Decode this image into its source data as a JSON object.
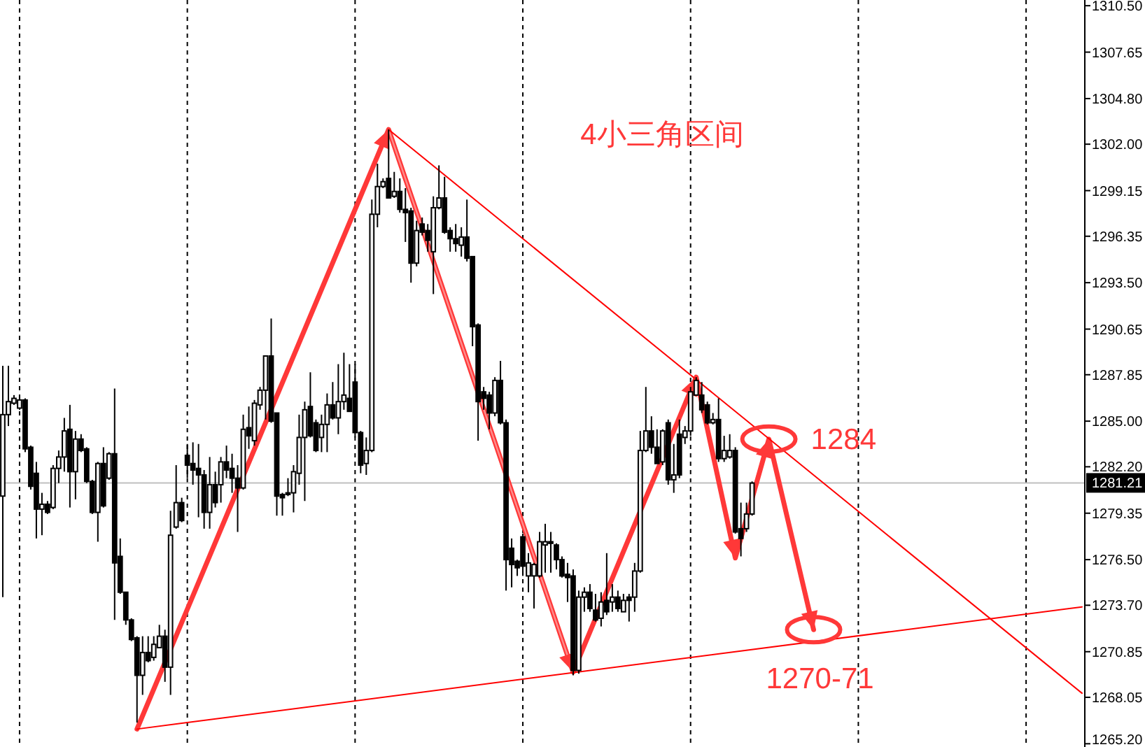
{
  "chart_data": {
    "type": "candlestick",
    "title": "4小三角区间",
    "categories": [
      null,
      null,
      null,
      null,
      null,
      null,
      null,
      null,
      null,
      null,
      null,
      null,
      null,
      null,
      null,
      null,
      null,
      null,
      null,
      null,
      null,
      null,
      null,
      null,
      null,
      null,
      null,
      null,
      null,
      null,
      null,
      null,
      null,
      null,
      null,
      null,
      null,
      null,
      null,
      null,
      null,
      null,
      null,
      null,
      null,
      null,
      null,
      null,
      null,
      null,
      null,
      null,
      null,
      null,
      null,
      null,
      null,
      null,
      null,
      null,
      null,
      null,
      null,
      null,
      null,
      null,
      null,
      null,
      null,
      null,
      null,
      null,
      null,
      null,
      null,
      null,
      null,
      null,
      null,
      null,
      null,
      null,
      null,
      null,
      null,
      null,
      null,
      null,
      null,
      null,
      null,
      null,
      null,
      null,
      null,
      null,
      null,
      null,
      null,
      null,
      null,
      null,
      null,
      null,
      null,
      null,
      null,
      null,
      null,
      null,
      null,
      null,
      null,
      null,
      null,
      null,
      null,
      null,
      null,
      null,
      null,
      null,
      null,
      null,
      null,
      null,
      null,
      null,
      null,
      null,
      null,
      null,
      null,
      null,
      null,
      null,
      null,
      null,
      null,
      null,
      null,
      null,
      null,
      null,
      null,
      null,
      null,
      null,
      null,
      null,
      null,
      null,
      null,
      null,
      null,
      null,
      null,
      null,
      null,
      null,
      null,
      null,
      null,
      null,
      null,
      null,
      null,
      null,
      null,
      null,
      null,
      null,
      null,
      null,
      null,
      null,
      null,
      null,
      null,
      null,
      null,
      null,
      null,
      null,
      null,
      null,
      null,
      null,
      null,
      null,
      null,
      null,
      null,
      null
    ],
    "ohlc": [
      [
        1280.4,
        1288.4,
        1274.2,
        1285.4
      ],
      [
        1285.4,
        1288.4,
        1284.7,
        1286.2
      ],
      [
        1286.1,
        1286.6,
        1286.0,
        1286.4
      ],
      [
        1285.8,
        1286.6,
        1285.7,
        1286.3
      ],
      [
        1286.3,
        1286.4,
        1283.1,
        1283.3
      ],
      [
        1283.4,
        1283.5,
        1280.8,
        1281.0
      ],
      [
        1281.8,
        1282.5,
        1277.8,
        1279.6
      ],
      [
        1279.6,
        1280.6,
        1278.0,
        1279.9
      ],
      [
        1279.9,
        1280.1,
        1279.3,
        1279.4
      ],
      [
        1279.7,
        1282.3,
        1279.6,
        1282.1
      ],
      [
        1282.1,
        1283.2,
        1281.2,
        1282.8
      ],
      [
        1282.8,
        1285.2,
        1281.9,
        1284.4
      ],
      [
        1284.5,
        1286.0,
        1279.7,
        1281.9
      ],
      [
        1281.9,
        1284.4,
        1280.2,
        1283.9
      ],
      [
        1283.9,
        1284.2,
        1283.1,
        1283.2
      ],
      [
        1283.3,
        1283.4,
        1281.2,
        1281.3
      ],
      [
        1281.3,
        1281.4,
        1279.3,
        1279.4
      ],
      [
        1279.4,
        1282.5,
        1277.6,
        1282.4
      ],
      [
        1282.4,
        1283.4,
        1279.7,
        1279.8
      ],
      [
        1281.5,
        1283.1,
        1281.4,
        1283.0
      ],
      [
        1283.0,
        1287.0,
        1272.8,
        1276.3
      ],
      [
        1276.7,
        1277.8,
        1274.4,
        1274.5
      ],
      [
        1274.5,
        1274.5,
        1272.5,
        1272.8
      ],
      [
        1272.8,
        1272.9,
        1271.5,
        1271.6
      ],
      [
        1271.7,
        1271.8,
        1266.5,
        1269.4
      ],
      [
        1269.4,
        1271.8,
        1268.2,
        1270.8
      ],
      [
        1270.8,
        1271.8,
        1270.2,
        1270.3
      ],
      [
        1270.5,
        1271.8,
        1270.3,
        1271.3
      ],
      [
        1271.1,
        1272.5,
        1271.1,
        1271.8
      ],
      [
        1271.8,
        1272.2,
        1269.0,
        1269.9
      ],
      [
        1269.9,
        1279.5,
        1268.2,
        1278.0
      ],
      [
        1278.5,
        1282.3,
        1278.4,
        1280.0
      ],
      [
        1280.0,
        1280.3,
        1278.8,
        1278.9
      ],
      [
        1282.9,
        1283.6,
        1281.5,
        1282.3
      ],
      [
        1282.4,
        1283.7,
        1281.1,
        1282.0
      ],
      [
        1282.1,
        1283.6,
        1279.1,
        1281.7
      ],
      [
        1281.7,
        1282.0,
        1278.4,
        1279.4
      ],
      [
        1279.4,
        1282.8,
        1278.4,
        1281.1
      ],
      [
        1281.1,
        1281.9,
        1279.7,
        1280.0
      ],
      [
        1281.1,
        1282.8,
        1280.0,
        1282.5
      ],
      [
        1282.5,
        1283.5,
        1281.5,
        1282.0
      ],
      [
        1282.1,
        1283.0,
        1280.6,
        1281.5
      ],
      [
        1281.5,
        1282.3,
        1278.2,
        1280.9
      ],
      [
        1280.9,
        1285.4,
        1280.8,
        1284.5
      ],
      [
        1284.6,
        1285.9,
        1283.3,
        1284.1
      ],
      [
        1283.8,
        1286.3,
        1283.5,
        1286.1
      ],
      [
        1286.0,
        1287.1,
        1285.7,
        1286.9
      ],
      [
        1286.9,
        1289.0,
        1285.1,
        1289.0
      ],
      [
        1289.0,
        1291.3,
        1284.9,
        1285.0
      ],
      [
        1285.5,
        1285.5,
        1279.2,
        1280.4
      ],
      [
        1280.5,
        1280.6,
        1279.2,
        1280.3
      ],
      [
        1280.6,
        1281.5,
        1280.4,
        1280.5
      ],
      [
        1280.6,
        1282.3,
        1279.4,
        1281.9
      ],
      [
        1281.8,
        1285.4,
        1281.1,
        1284.0
      ],
      [
        1284.0,
        1286.2,
        1280.1,
        1285.7
      ],
      [
        1285.9,
        1288.0,
        1284.0,
        1284.1
      ],
      [
        1284.9,
        1285.1,
        1283.1,
        1283.2
      ],
      [
        1284.0,
        1285.4,
        1283.1,
        1284.8
      ],
      [
        1284.8,
        1286.7,
        1283.1,
        1286.0
      ],
      [
        1286.0,
        1287.4,
        1285.1,
        1285.2
      ],
      [
        1285.2,
        1288.5,
        1284.2,
        1286.2
      ],
      [
        1286.2,
        1289.2,
        1285.7,
        1286.6
      ],
      [
        1286.4,
        1288.5,
        1285.6,
        1285.6
      ],
      [
        1287.4,
        1288.5,
        1284.0,
        1284.3
      ],
      [
        1284.3,
        1284.4,
        1281.8,
        1282.3
      ],
      [
        1282.4,
        1284.0,
        1281.7,
        1283.2
      ],
      [
        1283.2,
        1298.6,
        1283.1,
        1297.7
      ],
      [
        1297.7,
        1300.8,
        1296.9,
        1299.4
      ],
      [
        1299.4,
        1299.9,
        1299.3,
        1299.7
      ],
      [
        1299.9,
        1302.9,
        1298.7,
        1298.7
      ],
      [
        1298.8,
        1300.3,
        1298.7,
        1299.1
      ],
      [
        1299.1,
        1299.9,
        1297.8,
        1298.0
      ],
      [
        1298.0,
        1299.3,
        1296.0,
        1297.8
      ],
      [
        1297.9,
        1298.1,
        1293.5,
        1294.7
      ],
      [
        1294.7,
        1297.3,
        1294.5,
        1296.7
      ],
      [
        1297.1,
        1297.5,
        1296.4,
        1296.6
      ],
      [
        1296.7,
        1297.1,
        1295.4,
        1296.1
      ],
      [
        1295.4,
        1298.8,
        1292.8,
        1298.1
      ],
      [
        1298.1,
        1300.7,
        1298.0,
        1298.7
      ],
      [
        1298.7,
        1300.0,
        1296.5,
        1296.6
      ],
      [
        1296.7,
        1296.9,
        1295.4,
        1296.2
      ],
      [
        1296.2,
        1297.1,
        1295.4,
        1295.9
      ],
      [
        1295.8,
        1296.9,
        1295.1,
        1296.3
      ],
      [
        1296.3,
        1298.6,
        1294.8,
        1295.0
      ],
      [
        1295.1,
        1295.1,
        1289.6,
        1290.8
      ],
      [
        1290.9,
        1291.0,
        1283.8,
        1286.2
      ],
      [
        1286.8,
        1287.1,
        1285.7,
        1286.4
      ],
      [
        1286.6,
        1286.8,
        1284.5,
        1285.5
      ],
      [
        1285.5,
        1287.7,
        1285.3,
        1287.5
      ],
      [
        1287.5,
        1288.7,
        1284.8,
        1284.9
      ],
      [
        1284.9,
        1285.1,
        1274.6,
        1276.5
      ],
      [
        1277.2,
        1277.8,
        1274.8,
        1276.2
      ],
      [
        1276.4,
        1276.5,
        1275.5,
        1276.0
      ],
      [
        1277.9,
        1278.1,
        1275.5,
        1276.1
      ],
      [
        1275.5,
        1276.9,
        1274.5,
        1276.3
      ],
      [
        1275.5,
        1276.3,
        1273.5,
        1276.2
      ],
      [
        1275.5,
        1278.2,
        1275.4,
        1277.6
      ],
      [
        1277.4,
        1278.7,
        1275.7,
        1277.6
      ],
      [
        1277.6,
        1278.2,
        1275.7,
        1277.5
      ],
      [
        1277.4,
        1277.5,
        1275.9,
        1276.5
      ],
      [
        1276.5,
        1276.7,
        1275.4,
        1275.5
      ],
      [
        1275.6,
        1276.3,
        1273.9,
        1275.4
      ],
      [
        1275.5,
        1275.9,
        1269.4,
        1269.7
      ],
      [
        1269.7,
        1274.6,
        1269.5,
        1274.2
      ],
      [
        1274.2,
        1274.8,
        1273.3,
        1274.5
      ],
      [
        1274.5,
        1275.0,
        1273.3,
        1273.5
      ],
      [
        1273.4,
        1274.4,
        1272.7,
        1272.8
      ],
      [
        1272.9,
        1274.5,
        1272.4,
        1273.9
      ],
      [
        1274.0,
        1276.9,
        1273.1,
        1273.3
      ],
      [
        1273.9,
        1275.0,
        1273.3,
        1274.2
      ],
      [
        1274.2,
        1274.6,
        1273.3,
        1273.5
      ],
      [
        1273.3,
        1274.4,
        1273.3,
        1274.0
      ],
      [
        1274.2,
        1274.4,
        1272.7,
        1274.0
      ],
      [
        1274.2,
        1276.3,
        1273.3,
        1275.8
      ],
      [
        1275.8,
        1284.4,
        1275.7,
        1283.2
      ],
      [
        1283.2,
        1287.1,
        1283.1,
        1284.4
      ],
      [
        1284.4,
        1285.3,
        1283.0,
        1283.4
      ],
      [
        1283.4,
        1284.5,
        1282.4,
        1282.4
      ],
      [
        1282.5,
        1284.5,
        1282.3,
        1284.4
      ],
      [
        1284.9,
        1285.1,
        1281.1,
        1281.4
      ],
      [
        1281.4,
        1283.6,
        1280.6,
        1281.7
      ],
      [
        1284.2,
        1285.1,
        1281.5,
        1281.7
      ],
      [
        1284.0,
        1284.7,
        1283.6,
        1284.4
      ],
      [
        1284.4,
        1287.1,
        1284.1,
        1286.8
      ],
      [
        1286.6,
        1287.7,
        1286.6,
        1287.5
      ],
      [
        1286.6,
        1287.4,
        1285.5,
        1285.7
      ],
      [
        1286.0,
        1286.2,
        1284.8,
        1284.9
      ],
      [
        1284.9,
        1285.5,
        1284.8,
        1285.1
      ],
      [
        1285.1,
        1286.4,
        1282.5,
        1282.7
      ],
      [
        1282.7,
        1284.1,
        1282.5,
        1283.2
      ],
      [
        1282.8,
        1284.2,
        1282.7,
        1283.2
      ],
      [
        1283.2,
        1283.4,
        1278.1,
        1278.2
      ],
      [
        1278.4,
        1280.0,
        1276.7,
        1277.8
      ],
      [
        1278.4,
        1280.0,
        1278.2,
        1279.3
      ],
      [
        1279.3,
        1281.3,
        1279.2,
        1281.2
      ],
      null,
      null,
      null,
      null,
      null,
      null,
      null,
      null,
      null,
      null,
      null,
      null,
      null,
      null,
      null,
      null,
      null,
      null,
      null,
      null,
      null,
      null,
      null,
      null,
      null,
      null,
      null,
      null,
      null,
      null,
      null,
      null,
      null,
      null,
      null,
      null,
      null,
      null,
      null,
      null,
      null,
      null,
      null,
      null,
      null,
      null,
      null,
      null,
      null,
      null,
      null,
      null,
      null,
      null,
      null,
      null,
      null,
      null,
      null
    ],
    "series": [
      {
        "type": "line",
        "color": "#ff0000",
        "values": [
          null,
          null,
          null,
          null,
          null,
          null,
          null,
          null,
          null,
          null,
          null,
          null,
          null,
          null,
          null,
          null,
          null,
          null,
          null,
          null,
          null,
          null,
          null,
          null,
          null,
          null,
          null,
          null,
          null,
          null,
          null,
          null,
          null,
          null,
          null,
          null,
          null,
          null,
          null,
          null,
          null,
          null,
          null,
          null,
          null,
          null,
          null,
          null,
          null,
          null,
          null,
          null,
          null,
          null,
          null,
          null,
          null,
          null,
          null,
          null,
          null,
          null,
          null,
          null,
          null,
          null,
          null,
          null,
          null,
          1302.9,
          null,
          null,
          null,
          null,
          null,
          null,
          null,
          null,
          null,
          null,
          null,
          null,
          null,
          null,
          null,
          null,
          null,
          null,
          null,
          null,
          null,
          null,
          null,
          null,
          null,
          null,
          null,
          null,
          null,
          null,
          null,
          null,
          null,
          null,
          null,
          null,
          null,
          null,
          null,
          null,
          null,
          null,
          null,
          null,
          null,
          null,
          null,
          null,
          null,
          null,
          null,
          null,
          null,
          null,
          null,
          null,
          null,
          null,
          null,
          null,
          null,
          null,
          null,
          null,
          null,
          null,
          null,
          null,
          null,
          null,
          null,
          null,
          null,
          null,
          null,
          null,
          null,
          null,
          null,
          null,
          null,
          null,
          null,
          null,
          null,
          null,
          null,
          null,
          null,
          null,
          null,
          null,
          null,
          null,
          null,
          null,
          null,
          null,
          null,
          null,
          null,
          null,
          null,
          null,
          null,
          null,
          null,
          null,
          null,
          null,
          null,
          null,
          null,
          null,
          null,
          null,
          null,
          null,
          null,
          null,
          null,
          null,
          null,
          1268.3
        ]
      },
      {
        "type": "line",
        "color": "#ff0000",
        "values": [
          null,
          null,
          null,
          null,
          null,
          null,
          null,
          null,
          null,
          null,
          null,
          null,
          null,
          null,
          null,
          null,
          null,
          null,
          null,
          null,
          null,
          null,
          null,
          null,
          1266.1,
          null,
          null,
          null,
          null,
          null,
          null,
          null,
          null,
          null,
          null,
          null,
          null,
          null,
          null,
          null,
          null,
          null,
          null,
          null,
          null,
          null,
          null,
          null,
          null,
          null,
          null,
          null,
          null,
          null,
          null,
          null,
          null,
          null,
          null,
          null,
          null,
          null,
          null,
          null,
          null,
          null,
          null,
          null,
          null,
          null,
          null,
          null,
          null,
          null,
          null,
          null,
          null,
          null,
          null,
          null,
          null,
          null,
          null,
          null,
          null,
          null,
          null,
          null,
          null,
          null,
          null,
          null,
          null,
          null,
          null,
          null,
          null,
          null,
          null,
          null,
          null,
          null,
          null,
          null,
          null,
          null,
          null,
          null,
          null,
          null,
          null,
          null,
          null,
          null,
          null,
          null,
          null,
          null,
          null,
          null,
          null,
          null,
          null,
          null,
          null,
          null,
          null,
          null,
          null,
          null,
          null,
          null,
          null,
          null,
          null,
          null,
          null,
          null,
          null,
          null,
          null,
          null,
          null,
          null,
          null,
          null,
          null,
          null,
          null,
          null,
          null,
          null,
          null,
          null,
          null,
          null,
          null,
          null,
          null,
          null,
          null,
          null,
          null,
          null,
          null,
          null,
          null,
          null,
          null,
          null,
          null,
          null,
          null,
          null,
          null,
          null,
          null,
          null,
          null,
          null,
          null,
          null,
          null,
          null,
          null,
          null,
          null,
          null,
          null,
          null,
          null,
          null,
          null,
          1273.6
        ]
      },
      {
        "type": "line",
        "color": "#ff8c8c",
        "values": [
          null,
          null,
          null,
          null,
          null,
          null,
          null,
          null,
          null,
          null,
          null,
          null,
          null,
          null,
          null,
          null,
          null,
          null,
          null,
          null,
          null,
          null,
          null,
          null,
          null,
          null,
          null,
          null,
          null,
          null,
          null,
          null,
          null,
          null,
          null,
          null,
          null,
          null,
          null,
          null,
          null,
          null,
          null,
          null,
          null,
          null,
          null,
          null,
          null,
          null,
          null,
          null,
          null,
          null,
          null,
          null,
          null,
          null,
          null,
          null,
          null,
          null,
          null,
          null,
          null,
          null,
          null,
          null,
          null,
          1302.9,
          null,
          null,
          null,
          null,
          null,
          null,
          null,
          null,
          null,
          null,
          null,
          null,
          null,
          null,
          null,
          null,
          null,
          null,
          null,
          null,
          null,
          null,
          null,
          null,
          null,
          null,
          null,
          null,
          null,
          null,
          null,
          null,
          1269.6,
          null,
          null,
          null,
          null,
          null,
          null,
          null,
          null,
          null,
          null,
          null,
          null,
          null,
          null,
          null,
          null,
          null,
          null,
          null,
          null,
          null,
          null,
          null,
          null,
          null,
          null,
          null,
          null,
          null,
          null,
          null,
          null,
          null,
          null,
          null,
          null,
          null,
          null,
          null,
          null,
          null,
          null,
          null,
          null,
          null,
          null,
          null,
          null,
          null,
          null,
          null,
          null,
          null,
          null,
          null,
          null,
          null,
          null,
          null,
          null,
          null,
          null,
          null,
          null,
          null,
          null,
          null,
          null,
          null,
          null,
          null,
          null,
          null,
          null,
          null,
          null,
          null,
          null,
          null,
          null,
          null,
          null,
          null,
          null,
          null,
          null,
          null,
          null,
          null,
          null,
          null
        ]
      },
      {
        "type": "line",
        "color": "#ff3838",
        "values": [
          null,
          null,
          null,
          null,
          null,
          null,
          null,
          null,
          null,
          null,
          null,
          null,
          null,
          null,
          null,
          null,
          null,
          null,
          null,
          null,
          null,
          null,
          null,
          null,
          1266.1,
          null,
          null,
          null,
          null,
          null,
          null,
          null,
          null,
          null,
          null,
          null,
          null,
          null,
          null,
          null,
          null,
          null,
          null,
          null,
          null,
          null,
          null,
          null,
          null,
          null,
          null,
          null,
          null,
          null,
          null,
          null,
          null,
          null,
          null,
          null,
          null,
          null,
          null,
          null,
          null,
          null,
          null,
          null,
          null,
          1302.9,
          null,
          null,
          null,
          null,
          null,
          null,
          null,
          null,
          null,
          null,
          null,
          null,
          null,
          null,
          null,
          null,
          null,
          null,
          null,
          null,
          null,
          null,
          null,
          null,
          null,
          null,
          null,
          null,
          null,
          null,
          null,
          null,
          1269.6,
          null,
          null,
          null,
          null,
          null,
          null,
          null,
          null,
          null,
          null,
          null,
          null,
          null,
          null,
          null,
          null,
          null,
          null,
          null,
          null,
          null,
          1287.7,
          null,
          null,
          null,
          null,
          null,
          null,
          1276.6,
          null,
          null,
          null,
          null,
          null,
          1283.9,
          null,
          null,
          null,
          null,
          null,
          null,
          null,
          1272.2,
          null,
          null,
          null,
          null,
          null,
          null,
          null,
          null,
          null,
          null,
          null,
          null,
          null,
          null,
          null,
          null,
          null,
          null,
          null,
          null,
          null,
          null,
          null,
          null,
          null,
          null,
          null,
          null,
          null,
          null,
          null,
          null,
          null,
          null,
          null,
          null,
          null,
          null,
          null,
          null,
          null,
          null,
          null,
          null,
          null,
          null,
          null,
          null
        ]
      }
    ],
    "annotations": [
      "1284",
      "1270-71"
    ],
    "ref_lines": [
      {
        "axis": "y",
        "value": 1281.21,
        "label": "1281.21",
        "color": "#c0c0c0"
      }
    ],
    "ylim": [
      1265.0,
      1310.85
    ],
    "yticks": [
      {
        "value": 1310.5,
        "label": "1310.50"
      },
      1307.65,
      {
        "value": 1304.8,
        "label": "1304.80"
      },
      {
        "value": 1302,
        "label": "1302.00"
      },
      1299.15,
      1296.35,
      {
        "value": 1293.5,
        "label": "1293.50"
      },
      1290.65,
      1287.85,
      {
        "value": 1285,
        "label": "1285.00"
      },
      {
        "value": 1282.2,
        "label": "1282.20"
      },
      1279.35,
      {
        "value": 1276.5,
        "label": "1276.50"
      },
      {
        "value": 1273.7,
        "label": "1273.70"
      },
      1270.85,
      1268.05,
      {
        "value": 1265.2,
        "label": "1265.20"
      }
    ],
    "grid": "x",
    "tick_labels": "y"
  }
}
